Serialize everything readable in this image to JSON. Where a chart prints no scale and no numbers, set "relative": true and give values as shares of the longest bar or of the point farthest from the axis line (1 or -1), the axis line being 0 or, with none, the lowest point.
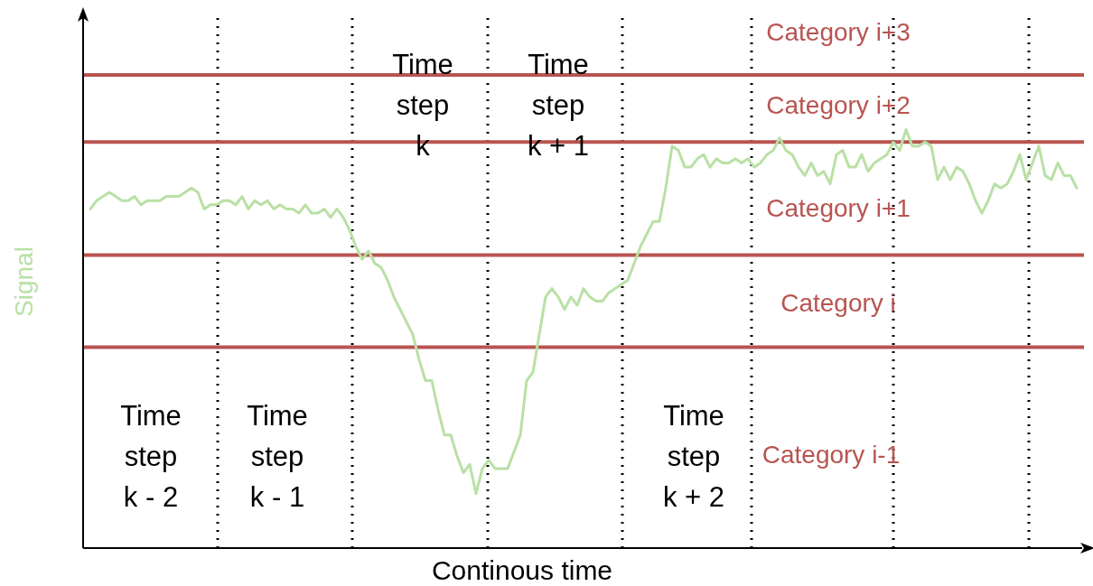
{
  "chart_data": {
    "type": "line",
    "relative": true,
    "xlabel": "Continous time",
    "ylabel": "Signal",
    "marker": "none",
    "line_style": "solid",
    "categories": [
      null,
      null,
      null,
      null,
      null,
      null,
      null,
      null,
      null,
      null,
      null,
      null,
      null,
      null,
      null,
      null,
      null,
      null,
      null,
      null,
      null,
      null,
      null,
      null,
      null,
      null,
      null,
      null,
      null,
      null,
      null,
      null,
      null,
      null,
      null,
      null,
      null,
      null,
      null,
      null,
      null,
      null,
      null,
      null,
      null,
      null,
      null,
      null,
      null,
      null,
      null,
      null,
      null,
      null,
      null,
      null,
      null,
      null,
      null,
      null,
      null,
      null,
      null,
      null,
      null,
      null,
      null,
      null,
      null,
      null,
      null,
      null,
      null,
      null,
      null,
      null,
      null,
      null,
      null,
      null,
      null,
      null,
      null,
      null,
      null,
      null,
      null,
      null,
      null,
      null,
      null,
      null,
      null,
      null,
      null,
      null,
      null,
      null,
      null,
      null,
      null,
      null,
      null,
      null,
      null,
      null,
      null,
      null,
      null,
      null,
      null,
      null,
      null,
      null,
      null,
      null,
      null,
      null,
      null,
      null,
      null,
      null,
      null,
      null,
      null,
      null,
      null,
      null,
      null,
      null,
      null,
      null,
      null,
      null,
      null,
      null,
      null,
      null,
      null,
      null,
      null,
      null,
      null,
      null,
      null,
      null,
      null,
      null,
      null,
      null,
      null,
      null,
      null,
      null,
      null,
      null,
      null
    ],
    "series": [
      {
        "color": "#b9e0a5",
        "values": [
          0.81,
          0.83,
          0.84,
          0.85,
          0.84,
          0.83,
          0.83,
          0.84,
          0.82,
          0.83,
          0.83,
          0.83,
          0.84,
          0.84,
          0.84,
          0.85,
          0.86,
          0.85,
          0.81,
          0.82,
          0.82,
          0.83,
          0.83,
          0.82,
          0.84,
          0.81,
          0.83,
          0.82,
          0.83,
          0.81,
          0.82,
          0.81,
          0.81,
          0.8,
          0.82,
          0.8,
          0.8,
          0.81,
          0.79,
          0.81,
          0.79,
          0.76,
          0.72,
          0.69,
          0.71,
          0.68,
          0.67,
          0.64,
          0.6,
          0.57,
          0.54,
          0.51,
          0.45,
          0.4,
          0.4,
          0.33,
          0.27,
          0.27,
          0.22,
          0.18,
          0.2,
          0.13,
          0.19,
          0.21,
          0.19,
          0.19,
          0.19,
          0.23,
          0.27,
          0.4,
          0.42,
          0.51,
          0.6,
          0.62,
          0.6,
          0.57,
          0.6,
          0.58,
          0.62,
          0.6,
          0.59,
          0.59,
          0.61,
          0.62,
          0.63,
          0.64,
          0.68,
          0.72,
          0.75,
          0.78,
          0.78,
          0.86,
          0.96,
          0.95,
          0.91,
          0.91,
          0.93,
          0.94,
          0.91,
          0.93,
          0.92,
          0.92,
          0.93,
          0.92,
          0.93,
          0.91,
          0.92,
          0.94,
          0.95,
          0.98,
          0.95,
          0.94,
          0.91,
          0.89,
          0.92,
          0.89,
          0.9,
          0.87,
          0.94,
          0.95,
          0.91,
          0.91,
          0.94,
          0.9,
          0.92,
          0.93,
          0.94,
          0.97,
          0.95,
          1,
          0.96,
          0.96,
          0.97,
          0.96,
          0.88,
          0.91,
          0.88,
          0.91,
          0.9,
          0.87,
          0.83,
          0.8,
          0.83,
          0.87,
          0.86,
          0.87,
          0.9,
          0.94,
          0.88,
          0.92,
          0.96,
          0.89,
          0.88,
          0.92,
          0.89,
          0.89,
          0.86
        ]
      }
    ],
    "ref_lines": [
      {
        "axis": "y",
        "value": 1.13,
        "color": "#b85450",
        "line_style": "solid"
      },
      {
        "axis": "y",
        "value": 0.97,
        "color": "#b85450",
        "line_style": "solid"
      },
      {
        "axis": "y",
        "value": 0.7,
        "color": "#b85450",
        "line_style": "solid"
      },
      {
        "axis": "y",
        "value": 0.48,
        "color": "#b85450",
        "line_style": "solid"
      }
    ],
    "annotations": [
      "Time\nstep\nk - 2",
      "Time\nstep\nk - 1",
      "Time\nstep\nk",
      "Time\nstep\nk + 1",
      "Time\nstep\nk + 2",
      "Category i+3",
      "Category i+2",
      "Category i+1",
      "Category i",
      "Category i-1"
    ]
  }
}
